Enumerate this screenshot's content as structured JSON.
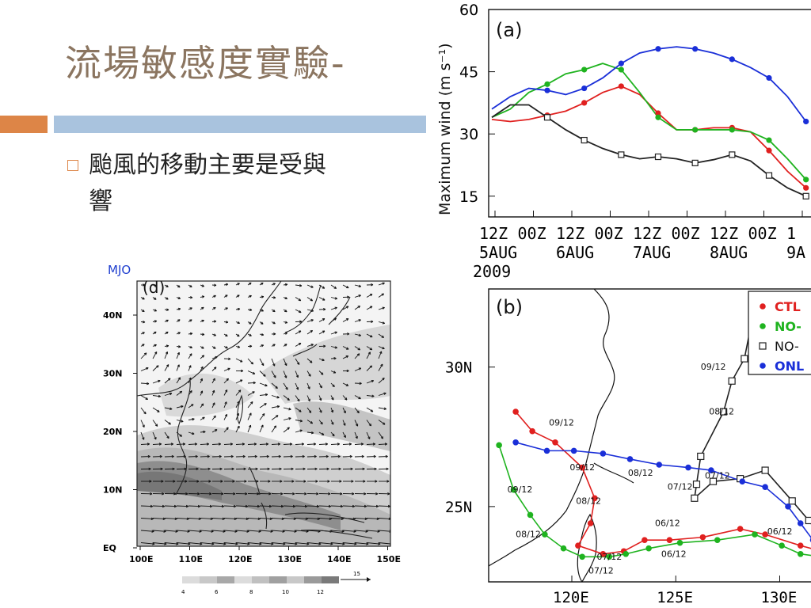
{
  "slide": {
    "title": "流場敏感度實驗-",
    "bullet_line1": "颱風的移動主要是受與",
    "bullet_line2": "響",
    "mjo_label": "MJO",
    "colors": {
      "accent_orange": "#dd8547",
      "accent_blue": "#a9c3de",
      "title": "#8b7560"
    }
  },
  "panel_d": {
    "label": "(d)",
    "y_ticks": [
      "40N",
      "30N",
      "20N",
      "10N",
      "EQ"
    ],
    "x_ticks": [
      "100E",
      "110E",
      "120E",
      "130E",
      "140E",
      "150E"
    ],
    "colorbar_ticks": [
      "4",
      "6",
      "8",
      "10",
      "12"
    ],
    "vector_ref": "15"
  },
  "chart_data": [
    {
      "type": "line",
      "label": "(a)",
      "ylabel": "Maximum wind (m s⁻¹)",
      "ylim": [
        10,
        60
      ],
      "yticks": [
        "60",
        "45",
        "30",
        "15"
      ],
      "xtick_hours": [
        "12Z",
        "00Z",
        "12Z",
        "00Z",
        "12Z",
        "00Z",
        "12Z",
        "00Z",
        "1"
      ],
      "xtick_days": [
        "5AUG",
        "6AUG",
        "7AUG",
        "8AUG",
        "9A"
      ],
      "year": "2009",
      "x": [
        0,
        6,
        12,
        18,
        24,
        30,
        36,
        42,
        48,
        54,
        60,
        66,
        72,
        78,
        84,
        90,
        96,
        102
      ],
      "series": [
        {
          "name": "CTL",
          "color": "#e0201f",
          "marker": "dot",
          "values": [
            33.5,
            33,
            33.5,
            34.5,
            35.5,
            37.5,
            40,
            41.5,
            39.5,
            35,
            31,
            31,
            31.5,
            31.5,
            30.5,
            26,
            21,
            17
          ]
        },
        {
          "name": "NO-",
          "color": "#1fb31f",
          "marker": "dot",
          "values": [
            34,
            36,
            40,
            42,
            44.5,
            45.5,
            47,
            45.5,
            40,
            34,
            31,
            31,
            31,
            31,
            30.5,
            28.5,
            24,
            19
          ]
        },
        {
          "name": "NO-",
          "color": "#222222",
          "marker": "square",
          "values": [
            34,
            37,
            37,
            34,
            31,
            28.5,
            26.5,
            25,
            24,
            24.5,
            24,
            23,
            23.8,
            25,
            23.5,
            20,
            17,
            15
          ]
        },
        {
          "name": "ONL",
          "color": "#1a2fd8",
          "marker": "dot",
          "values": [
            36,
            39,
            41,
            40.5,
            39.5,
            41,
            43.5,
            47,
            49.5,
            50.5,
            51,
            50.5,
            49.5,
            48,
            46,
            43.5,
            39,
            33
          ]
        }
      ]
    },
    {
      "type": "scatter",
      "label": "(b)",
      "x_ticks": [
        "120E",
        "125E",
        "130E"
      ],
      "y_ticks": [
        "30N",
        "25N"
      ],
      "xlim": [
        116,
        132
      ],
      "ylim": [
        22.3,
        32.8
      ],
      "legend": [
        "CTL",
        "NO-",
        "NO-",
        "ONL"
      ],
      "tracks": [
        {
          "name": "CTL",
          "color": "#e0201f",
          "marker": "dot",
          "points": [
            [
              117.3,
              28.4
            ],
            [
              118.1,
              27.7
            ],
            [
              119.2,
              27.3
            ],
            [
              120.5,
              26.4
            ],
            [
              121.1,
              25.3
            ],
            [
              120.9,
              24.4
            ],
            [
              120.3,
              23.6
            ],
            [
              121.5,
              23.3
            ],
            [
              122.5,
              23.4
            ],
            [
              123.5,
              23.8
            ],
            [
              124.7,
              23.8
            ],
            [
              126.3,
              23.9
            ],
            [
              128.1,
              24.2
            ],
            [
              129.3,
              24.0
            ],
            [
              131.0,
              23.6
            ],
            [
              132,
              23.4
            ]
          ]
        },
        {
          "name": "NO-",
          "color": "#1fb31f",
          "marker": "dot",
          "points": [
            [
              116.5,
              27.2
            ],
            [
              117.2,
              25.6
            ],
            [
              118.0,
              24.7
            ],
            [
              118.7,
              24.0
            ],
            [
              119.6,
              23.5
            ],
            [
              120.5,
              23.2
            ],
            [
              121.8,
              23.2
            ],
            [
              122.6,
              23.3
            ],
            [
              123.7,
              23.5
            ],
            [
              125.2,
              23.7
            ],
            [
              127.0,
              23.8
            ],
            [
              128.8,
              24.0
            ],
            [
              130.1,
              23.6
            ],
            [
              131.0,
              23.3
            ],
            [
              132,
              23.2
            ]
          ]
        },
        {
          "name": "NO-",
          "color": "#222222",
          "marker": "square",
          "points": [
            [
              128.7,
              31.8
            ],
            [
              128.3,
              30.3
            ],
            [
              127.7,
              29.5
            ],
            [
              127.3,
              28.4
            ],
            [
              126.2,
              26.8
            ],
            [
              126.0,
              25.8
            ],
            [
              125.9,
              25.3
            ],
            [
              126.8,
              25.9
            ],
            [
              128.1,
              26.0
            ],
            [
              129.3,
              26.3
            ],
            [
              130.6,
              25.2
            ],
            [
              131.4,
              24.5
            ],
            [
              132,
              23.9
            ]
          ]
        },
        {
          "name": "ONL",
          "color": "#1a2fd8",
          "marker": "dot",
          "points": [
            [
              117.3,
              27.3
            ],
            [
              118.8,
              27.0
            ],
            [
              120.1,
              27.0
            ],
            [
              121.5,
              26.9
            ],
            [
              122.8,
              26.7
            ],
            [
              124.2,
              26.5
            ],
            [
              125.6,
              26.4
            ],
            [
              126.7,
              26.3
            ],
            [
              128.2,
              25.9
            ],
            [
              129.3,
              25.7
            ],
            [
              130.4,
              25.0
            ],
            [
              131.0,
              24.4
            ],
            [
              131.6,
              23.8
            ],
            [
              132,
              23.5
            ]
          ]
        }
      ],
      "annotations": [
        {
          "text": "09/12",
          "lon": 118.9,
          "lat": 27.9
        },
        {
          "text": "09/12",
          "lon": 119.9,
          "lat": 26.3
        },
        {
          "text": "08/12",
          "lon": 120.2,
          "lat": 25.1
        },
        {
          "text": "09/12",
          "lon": 116.9,
          "lat": 25.5
        },
        {
          "text": "08/12",
          "lon": 117.3,
          "lat": 23.9
        },
        {
          "text": "07/12",
          "lon": 121.2,
          "lat": 23.1
        },
        {
          "text": "07/12",
          "lon": 120.8,
          "lat": 22.6
        },
        {
          "text": "09/12",
          "lon": 126.2,
          "lat": 29.9
        },
        {
          "text": "08/12",
          "lon": 126.6,
          "lat": 28.3
        },
        {
          "text": "07/12",
          "lon": 126.4,
          "lat": 26.0
        },
        {
          "text": "07/12",
          "lon": 124.6,
          "lat": 25.6
        },
        {
          "text": "08/12",
          "lon": 122.7,
          "lat": 26.1
        },
        {
          "text": "06/12",
          "lon": 124.0,
          "lat": 24.3
        },
        {
          "text": "06/12",
          "lon": 124.3,
          "lat": 23.2
        },
        {
          "text": "06/12",
          "lon": 129.4,
          "lat": 24.0
        }
      ]
    }
  ]
}
